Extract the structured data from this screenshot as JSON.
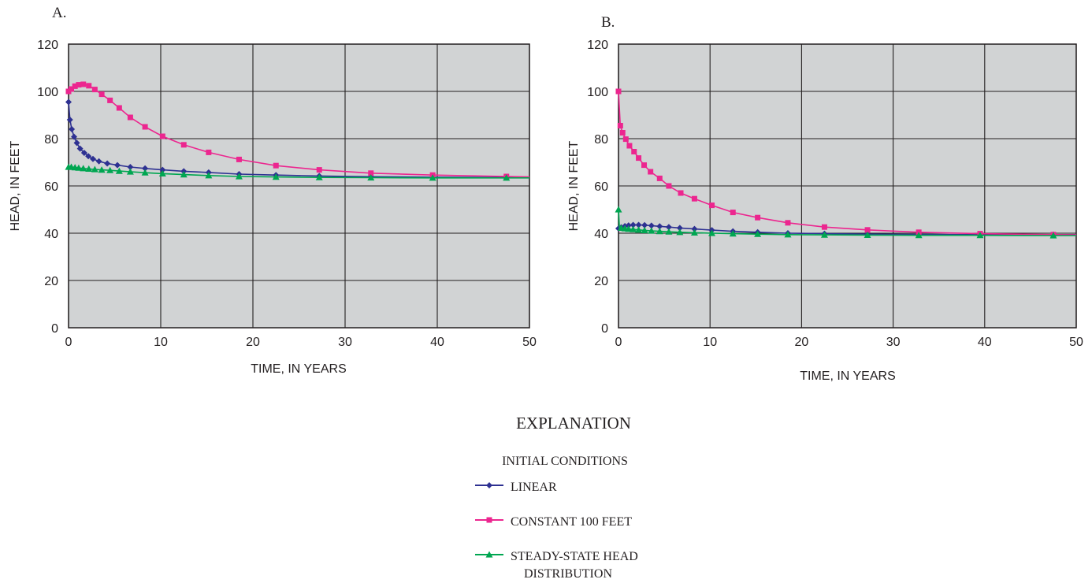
{
  "charts": [
    {
      "panel_label": "A.",
      "xlabel": "TIME, IN YEARS",
      "ylabel": "HEAD, IN FEET",
      "xlim": [
        0,
        50
      ],
      "ylim": [
        0,
        120
      ],
      "xticks": [
        0,
        10,
        20,
        30,
        40,
        50
      ],
      "yticks": [
        0,
        20,
        40,
        60,
        80,
        100,
        120
      ]
    },
    {
      "panel_label": "B.",
      "xlabel": "TIME, IN YEARS",
      "ylabel": "HEAD, IN FEET",
      "xlim": [
        0,
        50
      ],
      "ylim": [
        0,
        120
      ],
      "xticks": [
        0,
        10,
        20,
        30,
        40,
        50
      ],
      "yticks": [
        0,
        20,
        40,
        60,
        80,
        100,
        120
      ]
    }
  ],
  "chart_data": [
    {
      "type": "line",
      "xlim": [
        0,
        50
      ],
      "ylim": [
        0,
        120
      ],
      "grid": true,
      "background": "#d1d3d4",
      "series": [
        {
          "name": "LINEAR",
          "color": "#2e3192",
          "marker": "diamond",
          "x": [
            0,
            0.15,
            0.35,
            0.6,
            0.9,
            1.25,
            1.7,
            2.15,
            2.65,
            3.3,
            4.2,
            5.3,
            6.7,
            8.3,
            10.2,
            12.5,
            15.2,
            18.5,
            22.5,
            27.2,
            32.8,
            39.5,
            47.5,
            50
          ],
          "y": [
            95.5,
            88,
            84,
            80.8,
            78.2,
            75.8,
            74,
            72.6,
            71.4,
            70.4,
            69.5,
            68.8,
            68,
            67.4,
            66.8,
            66.2,
            65.7,
            65,
            64.6,
            64.2,
            63.9,
            63.7,
            63.6,
            63.6
          ],
          "markers_at": [
            0,
            0.15,
            0.35,
            0.6,
            0.9,
            1.25,
            1.7,
            2.15,
            2.65,
            3.3,
            4.2,
            5.3,
            6.7,
            8.3,
            10.2,
            12.5,
            15.2,
            18.5,
            22.5,
            27.2,
            32.8,
            39.5,
            47.5
          ]
        },
        {
          "name": "CONSTANT 100 FEET",
          "color": "#ec268f",
          "marker": "square",
          "x": [
            0,
            0.3,
            0.7,
            1.1,
            1.6,
            2.2,
            2.85,
            3.6,
            4.5,
            5.5,
            6.7,
            8.3,
            10.2,
            12.5,
            15.2,
            18.5,
            22.5,
            27.2,
            32.8,
            39.5,
            47.5,
            50
          ],
          "y": [
            100,
            101,
            102.2,
            102.8,
            103,
            102.4,
            100.8,
            98.8,
            96.2,
            93,
            89,
            85,
            81,
            77.4,
            74.2,
            71.2,
            68.6,
            66.8,
            65.4,
            64.6,
            64,
            63.8
          ],
          "markers_at": [
            0,
            0.3,
            0.7,
            1.1,
            1.6,
            2.2,
            2.85,
            3.6,
            4.5,
            5.5,
            6.7,
            8.3,
            10.2,
            12.5,
            15.2,
            18.5,
            22.5,
            27.2,
            32.8,
            39.5,
            47.5
          ]
        },
        {
          "name": "STEADY-STATE HEAD DISTRIBUTION",
          "color": "#00a651",
          "marker": "triangle",
          "x": [
            0,
            0.3,
            0.7,
            1.1,
            1.6,
            2.2,
            2.85,
            3.6,
            4.5,
            5.5,
            6.7,
            8.3,
            10.2,
            12.5,
            15.2,
            18.5,
            22.5,
            27.2,
            32.8,
            39.5,
            47.5,
            50
          ],
          "y": [
            68,
            68,
            67.8,
            67.6,
            67.4,
            67.2,
            67,
            66.8,
            66.6,
            66.3,
            66,
            65.6,
            65.2,
            64.8,
            64.4,
            64,
            63.8,
            63.6,
            63.5,
            63.4,
            63.4,
            63.4
          ],
          "markers_at": [
            0,
            0.3,
            0.7,
            1.1,
            1.6,
            2.2,
            2.85,
            3.6,
            4.5,
            5.5,
            6.7,
            8.3,
            10.2,
            12.5,
            15.2,
            18.5,
            22.5,
            27.2,
            32.8,
            39.5,
            47.5
          ]
        }
      ]
    },
    {
      "type": "line",
      "xlim": [
        0,
        50
      ],
      "ylim": [
        0,
        120
      ],
      "grid": true,
      "background": "#d1d3d4",
      "series": [
        {
          "name": "LINEAR",
          "color": "#2e3192",
          "marker": "diamond",
          "x": [
            0,
            0.3,
            0.7,
            1.1,
            1.6,
            2.2,
            2.85,
            3.6,
            4.5,
            5.5,
            6.7,
            8.3,
            10.2,
            12.5,
            15.2,
            18.5,
            22.5,
            27.2,
            32.8,
            39.5,
            47.5,
            50
          ],
          "y": [
            42,
            42.5,
            43,
            43.3,
            43.5,
            43.5,
            43.4,
            43.2,
            42.9,
            42.6,
            42.2,
            41.8,
            41.3,
            40.8,
            40.4,
            40,
            39.8,
            39.6,
            39.5,
            39.4,
            39.4,
            39.4
          ],
          "markers_at": [
            0,
            0.3,
            0.7,
            1.1,
            1.6,
            2.2,
            2.85,
            3.6,
            4.5,
            5.5,
            6.7,
            8.3,
            10.2,
            12.5,
            15.2,
            18.5,
            22.5,
            27.2,
            32.8,
            39.5,
            47.5
          ]
        },
        {
          "name": "CONSTANT 100 FEET",
          "color": "#ec268f",
          "marker": "square",
          "x": [
            0,
            0.2,
            0.45,
            0.8,
            1.2,
            1.7,
            2.2,
            2.8,
            3.5,
            4.5,
            5.5,
            6.8,
            8.3,
            10.2,
            12.5,
            15.2,
            18.5,
            22.5,
            27.2,
            32.8,
            39.5,
            47.5,
            50
          ],
          "y": [
            100,
            85.5,
            82.5,
            79.8,
            77,
            74.5,
            71.8,
            68.8,
            66,
            63.2,
            60,
            57,
            54.6,
            51.8,
            48.8,
            46.6,
            44.4,
            42.6,
            41.4,
            40.4,
            39.8,
            39.4,
            39.3
          ],
          "markers_at": [
            0,
            0.2,
            0.45,
            0.8,
            1.2,
            1.7,
            2.2,
            2.8,
            3.5,
            4.5,
            5.5,
            6.8,
            8.3,
            10.2,
            12.5,
            15.2,
            18.5,
            22.5,
            27.2,
            32.8,
            39.5,
            47.5
          ]
        },
        {
          "name": "STEADY-STATE HEAD DISTRIBUTION",
          "color": "#00a651",
          "marker": "triangle",
          "x": [
            0,
            0.1,
            0.3,
            0.7,
            1.1,
            1.6,
            2.2,
            2.85,
            3.6,
            4.5,
            5.5,
            6.7,
            8.3,
            10.2,
            12.5,
            15.2,
            18.5,
            22.5,
            27.2,
            32.8,
            39.5,
            47.5,
            50
          ],
          "y": [
            50,
            42,
            42.2,
            42,
            41.8,
            41.6,
            41.4,
            41.2,
            41,
            40.8,
            40.6,
            40.4,
            40.2,
            40,
            39.8,
            39.6,
            39.4,
            39.3,
            39.2,
            39.1,
            39.1,
            39,
            39
          ],
          "markers_at": [
            0,
            0.3,
            0.7,
            1.1,
            1.6,
            2.2,
            2.85,
            3.6,
            4.5,
            5.5,
            6.7,
            8.3,
            10.2,
            12.5,
            15.2,
            18.5,
            22.5,
            27.2,
            32.8,
            39.5,
            47.5
          ]
        }
      ]
    }
  ],
  "explanation": {
    "title": "EXPLANATION",
    "subtitle": "INITIAL CONDITIONS",
    "items": [
      {
        "label": "LINEAR",
        "color": "#2e3192",
        "marker": "diamond"
      },
      {
        "label": "CONSTANT 100 FEET",
        "color": "#ec268f",
        "marker": "square"
      },
      {
        "label_line1": "STEADY-STATE HEAD",
        "label_line2": "DISTRIBUTION",
        "color": "#00a651",
        "marker": "triangle"
      }
    ]
  }
}
